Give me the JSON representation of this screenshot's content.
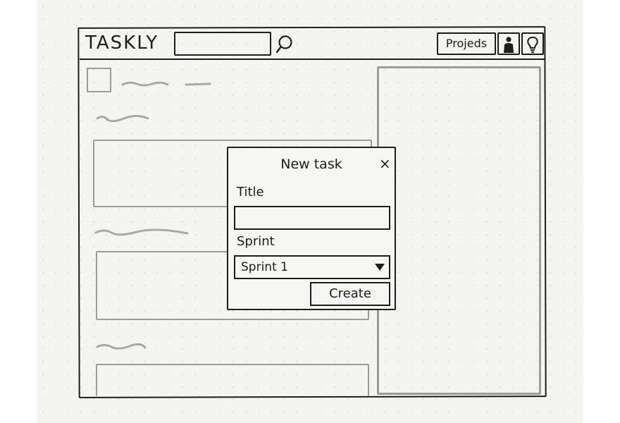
{
  "header": {
    "logo": "TASKLY",
    "search": {
      "value": ""
    },
    "projects_label": "Projeds",
    "icons": [
      "search-icon",
      "user-icon",
      "lightbulb-icon"
    ]
  },
  "main": {
    "sections": [
      {
        "kind": "placeholder-heading"
      },
      {
        "kind": "placeholder-heading"
      },
      {
        "kind": "placeholder-heading"
      }
    ]
  },
  "modal": {
    "title": "New task",
    "close_symbol": "×",
    "title_label": "Title",
    "title_value": "",
    "sprint_label": "Sprint",
    "sprint_value": "Sprint 1",
    "create_label": "Create"
  },
  "colors": {
    "ink": "#1d1d1d",
    "pencil": "#9c9c9c",
    "paper": "#f4f4f2"
  }
}
